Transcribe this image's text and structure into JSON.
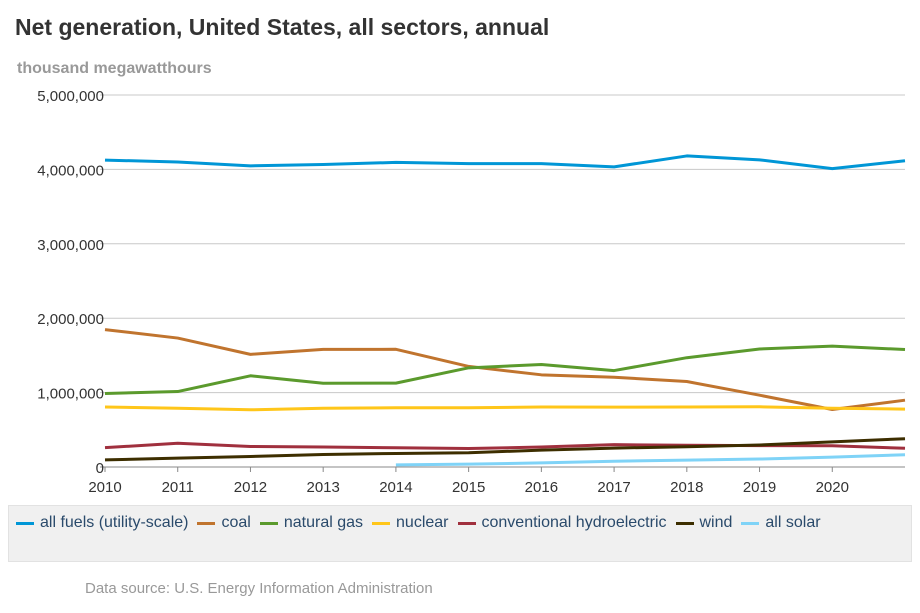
{
  "title": "Net generation, United States, all sectors, annual",
  "subtitle": "thousand megawatthours",
  "source": "Data source: U.S. Energy Information Administration",
  "chart_data": {
    "type": "line",
    "title": "Net generation, United States, all sectors, annual",
    "ylabel": "thousand megawatthours",
    "xlabel": "",
    "ylim": [
      0,
      5000000
    ],
    "xlim": [
      2010,
      2021
    ],
    "grid": true,
    "legend_position": "bottom",
    "x": [
      2010,
      2011,
      2012,
      2013,
      2014,
      2015,
      2016,
      2017,
      2018,
      2019,
      2020,
      2021
    ],
    "x_tick_labels": [
      "2010",
      "2011",
      "2012",
      "2013",
      "2014",
      "2015",
      "2016",
      "2017",
      "2018",
      "2019",
      "2020"
    ],
    "y_ticks": [
      0,
      1000000,
      2000000,
      3000000,
      4000000,
      5000000
    ],
    "y_tick_labels": [
      "0",
      "1,000,000",
      "2,000,000",
      "3,000,000",
      "4,000,000",
      "5,000,000"
    ],
    "series": [
      {
        "name": "all fuels (utility-scale)",
        "color": "#0096d6",
        "values": [
          4125000,
          4100000,
          4048000,
          4066000,
          4094000,
          4078000,
          4077000,
          4034000,
          4181000,
          4128000,
          4010000,
          4116000
        ]
      },
      {
        "name": "coal",
        "color": "#c0742e",
        "values": [
          1847000,
          1733000,
          1514000,
          1581000,
          1582000,
          1352000,
          1239000,
          1206000,
          1149000,
          965000,
          773000,
          898000
        ]
      },
      {
        "name": "natural gas",
        "color": "#5b9a2d",
        "values": [
          988000,
          1014000,
          1226000,
          1125000,
          1127000,
          1333000,
          1378000,
          1296000,
          1469000,
          1586000,
          1624000,
          1579000
        ]
      },
      {
        "name": "nuclear",
        "color": "#ffc61a",
        "values": [
          807000,
          790000,
          769000,
          789000,
          797000,
          797000,
          806000,
          805000,
          807000,
          809000,
          790000,
          778000
        ]
      },
      {
        "name": "conventional hydroelectric",
        "color": "#a0303e",
        "values": [
          260000,
          319000,
          276000,
          269000,
          259000,
          249000,
          268000,
          300000,
          293000,
          288000,
          285000,
          252000
        ]
      },
      {
        "name": "wind",
        "color": "#3d2e00",
        "values": [
          95000,
          120000,
          141000,
          168000,
          182000,
          191000,
          227000,
          254000,
          273000,
          296000,
          338000,
          380000
        ]
      },
      {
        "name": "all solar",
        "color": "#7fd3f7",
        "values": [
          null,
          null,
          null,
          null,
          29000,
          39000,
          55000,
          77000,
          93000,
          107000,
          133000,
          164000
        ]
      }
    ]
  }
}
